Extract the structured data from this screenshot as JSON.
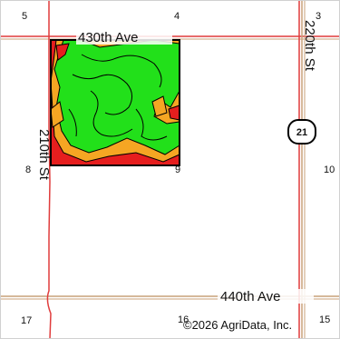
{
  "roads": {
    "north": "430th Ave",
    "south": "440th Ave",
    "west": "210th St",
    "east": "220th St"
  },
  "route_shield": "21",
  "section_numbers": [
    "5",
    "4",
    "3",
    "8",
    "9",
    "10",
    "17",
    "16",
    "15"
  ],
  "copyright": "©2026 AgriData, Inc.",
  "colors": {
    "road_red": "#e03c3c",
    "road_tan": "#c8a27a",
    "zone_green": "#22e01a",
    "zone_orange": "#f5a623",
    "zone_red": "#e61e1e",
    "field_border": "#000000"
  }
}
